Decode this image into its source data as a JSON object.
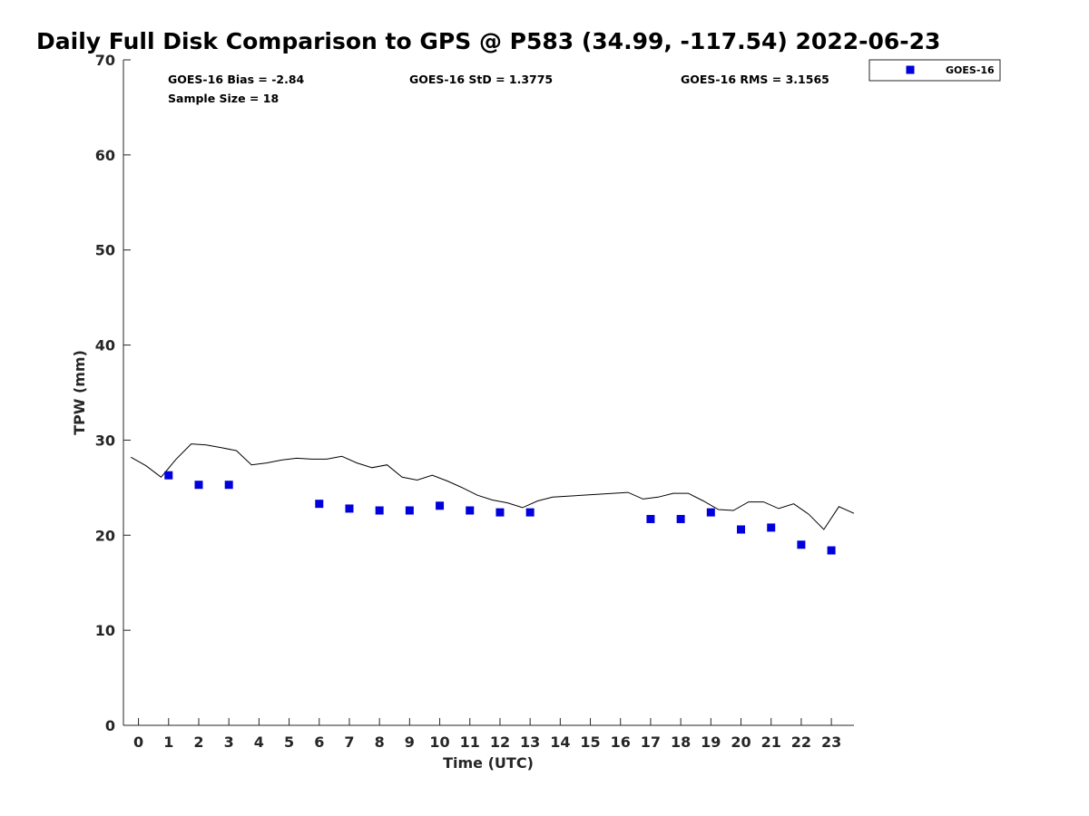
{
  "chart_data": {
    "type": "scatter",
    "title": "Daily Full Disk Comparison to GPS @ P583 (34.99, -117.54) 2022-06-23",
    "xlabel": "Time (UTC)",
    "ylabel": "TPW (mm)",
    "xlim": [
      -0.5,
      23.75
    ],
    "ylim": [
      0,
      70
    ],
    "x_ticks": [
      "0",
      "1",
      "2",
      "3",
      "4",
      "5",
      "6",
      "7",
      "8",
      "9",
      "10",
      "11",
      "12",
      "13",
      "14",
      "15",
      "16",
      "17",
      "18",
      "19",
      "20",
      "21",
      "22",
      "23"
    ],
    "y_ticks": [
      "0",
      "10",
      "20",
      "30",
      "40",
      "50",
      "60",
      "70"
    ],
    "grid": false,
    "legend_position": "outside top-right",
    "stats": {
      "bias": "GOES-16 Bias = -2.84",
      "sample_size": "Sample Size = 18",
      "std": "GOES-16 StD = 1.3775",
      "rms": "GOES-16 RMS = 3.1565"
    },
    "series": [
      {
        "name": "GOES-16",
        "marker": "square",
        "color": "#0000dd",
        "x": [
          1,
          2,
          3,
          6,
          7,
          8,
          9,
          10,
          11,
          12,
          13,
          17,
          18,
          19,
          20,
          21,
          22,
          23
        ],
        "y": [
          26.3,
          25.3,
          25.3,
          23.3,
          22.8,
          22.6,
          22.6,
          23.1,
          22.6,
          22.4,
          22.4,
          21.7,
          21.7,
          22.4,
          20.6,
          20.8,
          19.0,
          18.4
        ]
      },
      {
        "marker": "line",
        "color": "#000000",
        "x": [
          -0.25,
          0.25,
          0.75,
          1.25,
          1.75,
          2.25,
          2.75,
          3.25,
          3.75,
          4.25,
          4.75,
          5.25,
          5.75,
          6.25,
          6.75,
          7.25,
          7.75,
          8.25,
          8.75,
          9.25,
          9.75,
          10.25,
          10.75,
          11.25,
          11.75,
          12.25,
          12.75,
          13.25,
          13.75,
          16.25,
          16.75,
          17.25,
          17.75,
          18.25,
          18.75,
          19.25,
          19.75,
          20.25,
          20.75,
          21.25,
          21.75,
          22.25,
          22.75,
          23.25,
          23.75
        ],
        "y": [
          28.2,
          27.3,
          26.1,
          28.0,
          29.6,
          29.5,
          29.2,
          28.9,
          27.4,
          27.6,
          27.9,
          28.1,
          28.0,
          28.0,
          28.3,
          27.6,
          27.1,
          27.4,
          26.1,
          25.8,
          26.3,
          25.7,
          25.0,
          24.2,
          23.7,
          23.4,
          22.9,
          23.6,
          24.0,
          24.5,
          23.8,
          24.0,
          24.4,
          24.4,
          23.6,
          22.7,
          22.6,
          23.5,
          23.5,
          22.8,
          23.3,
          22.2,
          20.6,
          23.0,
          22.3
        ]
      }
    ]
  }
}
